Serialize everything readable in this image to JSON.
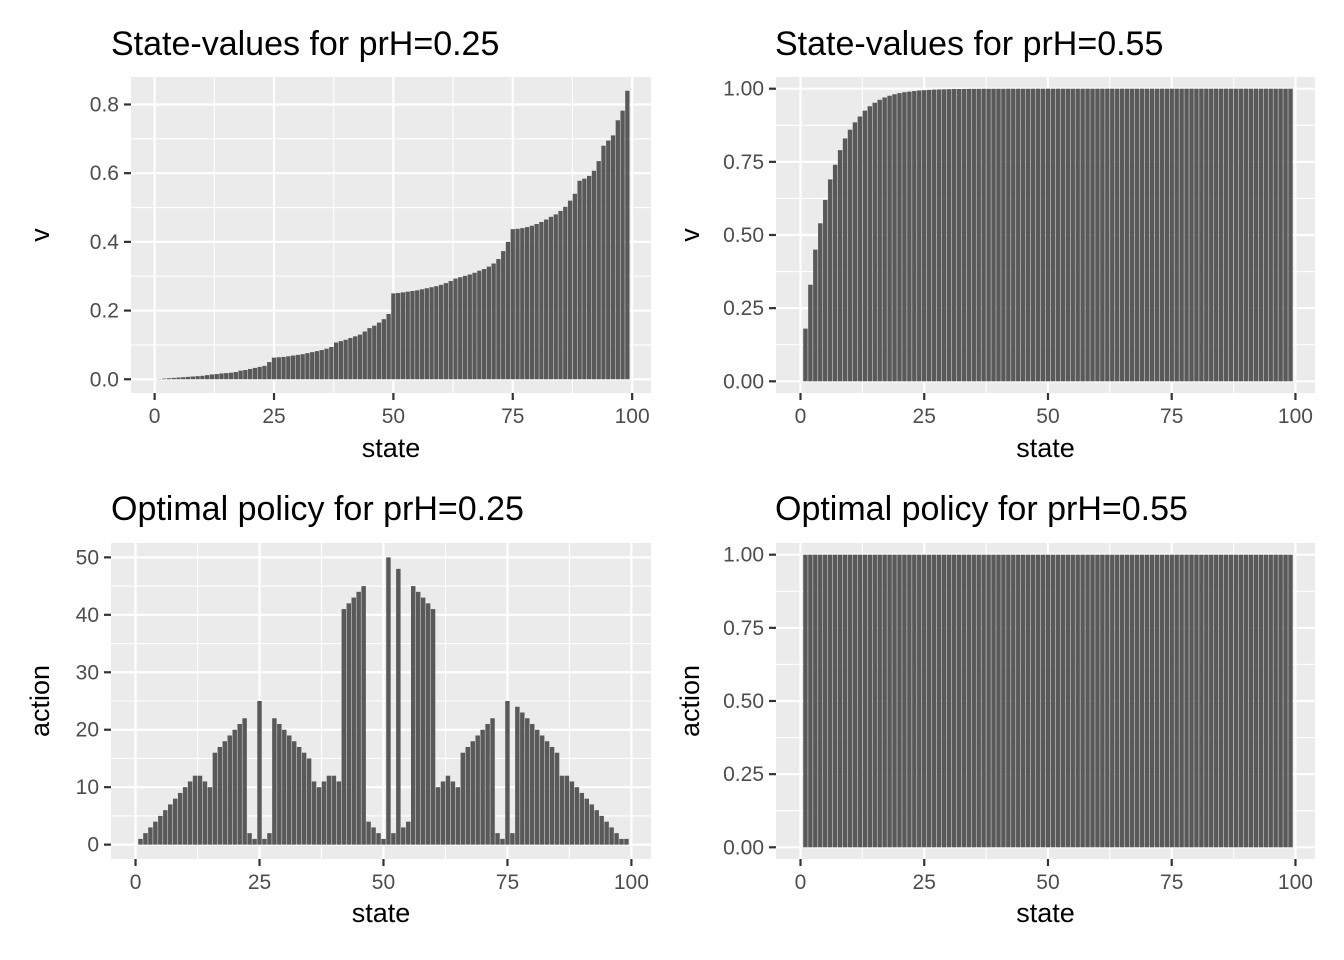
{
  "chart_data": [
    {
      "type": "bar",
      "title": "State-values for prH=0.25",
      "xlabel": "state",
      "ylabel": "v",
      "xlim": [
        -4.95,
        103.95
      ],
      "ylim": [
        -0.04,
        0.88
      ],
      "xticks": [
        0,
        25,
        50,
        75,
        100
      ],
      "xtick_labels": [
        "0",
        "25",
        "50",
        "75",
        "100"
      ],
      "yticks": [
        0.0,
        0.2,
        0.4,
        0.6,
        0.8
      ],
      "ytick_labels": [
        "0.0",
        "0.2",
        "0.4",
        "0.6",
        "0.8"
      ],
      "grid": true,
      "bar_color": "#595959",
      "panel_color": "#ebebeb",
      "x": [
        1,
        2,
        3,
        4,
        5,
        6,
        7,
        8,
        9,
        10,
        11,
        12,
        13,
        14,
        15,
        16,
        17,
        18,
        19,
        20,
        21,
        22,
        23,
        24,
        25,
        26,
        27,
        28,
        29,
        30,
        31,
        32,
        33,
        34,
        35,
        36,
        37,
        38,
        39,
        40,
        41,
        42,
        43,
        44,
        45,
        46,
        47,
        48,
        49,
        50,
        51,
        52,
        53,
        54,
        55,
        56,
        57,
        58,
        59,
        60,
        61,
        62,
        63,
        64,
        65,
        66,
        67,
        68,
        69,
        70,
        71,
        72,
        73,
        74,
        75,
        76,
        77,
        78,
        79,
        80,
        81,
        82,
        83,
        84,
        85,
        86,
        87,
        88,
        89,
        90,
        91,
        92,
        93,
        94,
        95,
        96,
        97,
        98,
        99
      ],
      "values": [
        0.001,
        0.002,
        0.003,
        0.004,
        0.005,
        0.006,
        0.007,
        0.008,
        0.009,
        0.01,
        0.012,
        0.014,
        0.015,
        0.017,
        0.018,
        0.019,
        0.021,
        0.025,
        0.027,
        0.03,
        0.033,
        0.036,
        0.039,
        0.05,
        0.063,
        0.064,
        0.065,
        0.067,
        0.069,
        0.071,
        0.073,
        0.076,
        0.079,
        0.082,
        0.085,
        0.089,
        0.094,
        0.107,
        0.111,
        0.115,
        0.12,
        0.125,
        0.13,
        0.139,
        0.149,
        0.156,
        0.165,
        0.175,
        0.19,
        0.25,
        0.251,
        0.253,
        0.255,
        0.257,
        0.259,
        0.262,
        0.265,
        0.268,
        0.271,
        0.275,
        0.28,
        0.286,
        0.293,
        0.297,
        0.301,
        0.305,
        0.31,
        0.316,
        0.321,
        0.328,
        0.337,
        0.35,
        0.373,
        0.4,
        0.437,
        0.438,
        0.44,
        0.443,
        0.447,
        0.452,
        0.458,
        0.465,
        0.473,
        0.48,
        0.49,
        0.502,
        0.52,
        0.54,
        0.578,
        0.584,
        0.592,
        0.607,
        0.635,
        0.68,
        0.695,
        0.71,
        0.754,
        0.782,
        0.84
      ]
    },
    {
      "type": "bar",
      "title": "State-values for prH=0.55",
      "xlabel": "state",
      "ylabel": "v",
      "xlim": [
        -4.95,
        103.95
      ],
      "ylim": [
        -0.04,
        1.04
      ],
      "xticks": [
        0,
        25,
        50,
        75,
        100
      ],
      "xtick_labels": [
        "0",
        "25",
        "50",
        "75",
        "100"
      ],
      "yticks": [
        0.0,
        0.25,
        0.5,
        0.75,
        1.0
      ],
      "ytick_labels": [
        "0.00",
        "0.25",
        "0.50",
        "0.75",
        "1.00"
      ],
      "grid": true,
      "bar_color": "#595959",
      "panel_color": "#ebebeb",
      "x": [
        1,
        2,
        3,
        4,
        5,
        6,
        7,
        8,
        9,
        10,
        11,
        12,
        13,
        14,
        15,
        16,
        17,
        18,
        19,
        20,
        21,
        22,
        23,
        24,
        25,
        26,
        27,
        28,
        29,
        30,
        31,
        32,
        33,
        34,
        35,
        36,
        37,
        38,
        39,
        40,
        41,
        42,
        43,
        44,
        45,
        46,
        47,
        48,
        49,
        50,
        51,
        52,
        53,
        54,
        55,
        56,
        57,
        58,
        59,
        60,
        61,
        62,
        63,
        64,
        65,
        66,
        67,
        68,
        69,
        70,
        71,
        72,
        73,
        74,
        75,
        76,
        77,
        78,
        79,
        80,
        81,
        82,
        83,
        84,
        85,
        86,
        87,
        88,
        89,
        90,
        91,
        92,
        93,
        94,
        95,
        96,
        97,
        98,
        99
      ],
      "values": [
        0.18,
        0.33,
        0.45,
        0.54,
        0.62,
        0.69,
        0.74,
        0.79,
        0.83,
        0.86,
        0.885,
        0.905,
        0.925,
        0.94,
        0.952,
        0.962,
        0.97,
        0.976,
        0.981,
        0.985,
        0.988,
        0.99,
        0.992,
        0.994,
        0.995,
        0.996,
        0.997,
        0.9975,
        0.998,
        0.9985,
        0.999,
        0.999,
        0.9992,
        0.9994,
        0.9995,
        0.9996,
        0.9997,
        0.9997,
        0.9998,
        0.9998,
        0.9998,
        0.9999,
        0.9999,
        0.9999,
        0.9999,
        0.9999,
        1.0,
        1.0,
        1.0,
        1.0,
        1.0,
        1.0,
        1.0,
        1.0,
        1.0,
        1.0,
        1.0,
        1.0,
        1.0,
        1.0,
        1.0,
        1.0,
        1.0,
        1.0,
        1.0,
        1.0,
        1.0,
        1.0,
        1.0,
        1.0,
        1.0,
        1.0,
        1.0,
        1.0,
        1.0,
        1.0,
        1.0,
        1.0,
        1.0,
        1.0,
        1.0,
        1.0,
        1.0,
        1.0,
        1.0,
        1.0,
        1.0,
        1.0,
        1.0,
        1.0,
        1.0,
        1.0,
        1.0,
        1.0,
        1.0,
        1.0,
        1.0,
        1.0,
        1.0
      ]
    },
    {
      "type": "bar",
      "title": "Optimal policy for prH=0.25",
      "xlabel": "state",
      "ylabel": "action",
      "xlim": [
        -4.95,
        103.95
      ],
      "ylim": [
        -2.5,
        52.5
      ],
      "xticks": [
        0,
        25,
        50,
        75,
        100
      ],
      "xtick_labels": [
        "0",
        "25",
        "50",
        "75",
        "100"
      ],
      "yticks": [
        0,
        10,
        20,
        30,
        40,
        50
      ],
      "ytick_labels": [
        "0",
        "10",
        "20",
        "30",
        "40",
        "50"
      ],
      "grid": true,
      "bar_color": "#595959",
      "panel_color": "#ebebeb",
      "x": [
        1,
        2,
        3,
        4,
        5,
        6,
        7,
        8,
        9,
        10,
        11,
        12,
        13,
        14,
        15,
        16,
        17,
        18,
        19,
        20,
        21,
        22,
        23,
        24,
        25,
        26,
        27,
        28,
        29,
        30,
        31,
        32,
        33,
        34,
        35,
        36,
        37,
        38,
        39,
        40,
        41,
        42,
        43,
        44,
        45,
        46,
        47,
        48,
        49,
        50,
        51,
        52,
        53,
        54,
        55,
        56,
        57,
        58,
        59,
        60,
        61,
        62,
        63,
        64,
        65,
        66,
        67,
        68,
        69,
        70,
        71,
        72,
        73,
        74,
        75,
        76,
        77,
        78,
        79,
        80,
        81,
        82,
        83,
        84,
        85,
        86,
        87,
        88,
        89,
        90,
        91,
        92,
        93,
        94,
        95,
        96,
        97,
        98,
        99
      ],
      "values": [
        1,
        2,
        3,
        4,
        5,
        6,
        7,
        8,
        9,
        10,
        11,
        12,
        12,
        11,
        10,
        16,
        17,
        18,
        19,
        20,
        21,
        22,
        2,
        1,
        25,
        1,
        2,
        22,
        21,
        20,
        19,
        18,
        17,
        16,
        15,
        11,
        10,
        11,
        12,
        12,
        11,
        41,
        42,
        43,
        44,
        45,
        4,
        3,
        2,
        1,
        50,
        2,
        48,
        3,
        4,
        45,
        44,
        43,
        42,
        41,
        10,
        11,
        12,
        11,
        10,
        16,
        17,
        18,
        19,
        20,
        21,
        22,
        2,
        1,
        25,
        2,
        24,
        23,
        22,
        21,
        20,
        19,
        18,
        17,
        16,
        12,
        12,
        11,
        10,
        9,
        8,
        7,
        6,
        5,
        4,
        3,
        2,
        1,
        1
      ]
    },
    {
      "type": "bar",
      "title": "Optimal policy for prH=0.55",
      "xlabel": "state",
      "ylabel": "action",
      "xlim": [
        -4.95,
        103.95
      ],
      "ylim": [
        -0.04,
        1.04
      ],
      "xticks": [
        0,
        25,
        50,
        75,
        100
      ],
      "xtick_labels": [
        "0",
        "25",
        "50",
        "75",
        "100"
      ],
      "yticks": [
        0.0,
        0.25,
        0.5,
        0.75,
        1.0
      ],
      "ytick_labels": [
        "0.00",
        "0.25",
        "0.50",
        "0.75",
        "1.00"
      ],
      "grid": true,
      "bar_color": "#595959",
      "panel_color": "#ebebeb",
      "x": [
        1,
        2,
        3,
        4,
        5,
        6,
        7,
        8,
        9,
        10,
        11,
        12,
        13,
        14,
        15,
        16,
        17,
        18,
        19,
        20,
        21,
        22,
        23,
        24,
        25,
        26,
        27,
        28,
        29,
        30,
        31,
        32,
        33,
        34,
        35,
        36,
        37,
        38,
        39,
        40,
        41,
        42,
        43,
        44,
        45,
        46,
        47,
        48,
        49,
        50,
        51,
        52,
        53,
        54,
        55,
        56,
        57,
        58,
        59,
        60,
        61,
        62,
        63,
        64,
        65,
        66,
        67,
        68,
        69,
        70,
        71,
        72,
        73,
        74,
        75,
        76,
        77,
        78,
        79,
        80,
        81,
        82,
        83,
        84,
        85,
        86,
        87,
        88,
        89,
        90,
        91,
        92,
        93,
        94,
        95,
        96,
        97,
        98,
        99
      ],
      "values": [
        1,
        1,
        1,
        1,
        1,
        1,
        1,
        1,
        1,
        1,
        1,
        1,
        1,
        1,
        1,
        1,
        1,
        1,
        1,
        1,
        1,
        1,
        1,
        1,
        1,
        1,
        1,
        1,
        1,
        1,
        1,
        1,
        1,
        1,
        1,
        1,
        1,
        1,
        1,
        1,
        1,
        1,
        1,
        1,
        1,
        1,
        1,
        1,
        1,
        1,
        1,
        1,
        1,
        1,
        1,
        1,
        1,
        1,
        1,
        1,
        1,
        1,
        1,
        1,
        1,
        1,
        1,
        1,
        1,
        1,
        1,
        1,
        1,
        1,
        1,
        1,
        1,
        1,
        1,
        1,
        1,
        1,
        1,
        1,
        1,
        1,
        1,
        1,
        1,
        1,
        1,
        1,
        1,
        1,
        1,
        1,
        1,
        1,
        1
      ]
    }
  ]
}
